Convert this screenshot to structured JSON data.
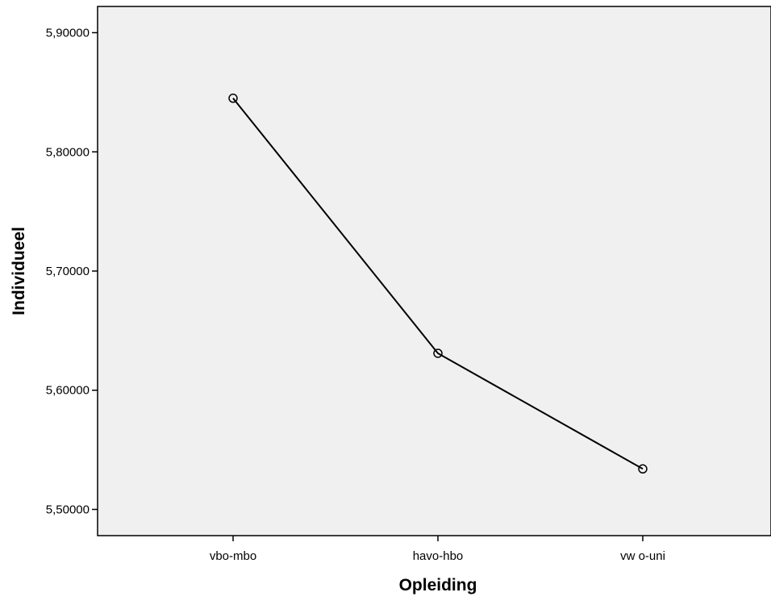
{
  "chart_data": {
    "type": "line",
    "title": "",
    "xlabel": "Opleiding",
    "ylabel": "Individueel",
    "categories": [
      "vbo-mbo",
      "havo-hbo",
      "vwo-uni"
    ],
    "category_display": [
      "vbo-mbo",
      "havo-hbo",
      "vw o-uni"
    ],
    "values": [
      5.845,
      5.631,
      5.534
    ],
    "ylim": [
      5.478,
      5.922
    ],
    "yticks": [
      5.5,
      5.6,
      5.7,
      5.8,
      5.9
    ],
    "ytick_labels": [
      "5,50000",
      "5,60000",
      "5,70000",
      "5,80000",
      "5,90000"
    ],
    "marker": "open-circle",
    "grid": false,
    "legend": "none",
    "colors": {
      "plot_background": "#f0f0f0",
      "line": "#000000",
      "axis": "#000000"
    }
  }
}
